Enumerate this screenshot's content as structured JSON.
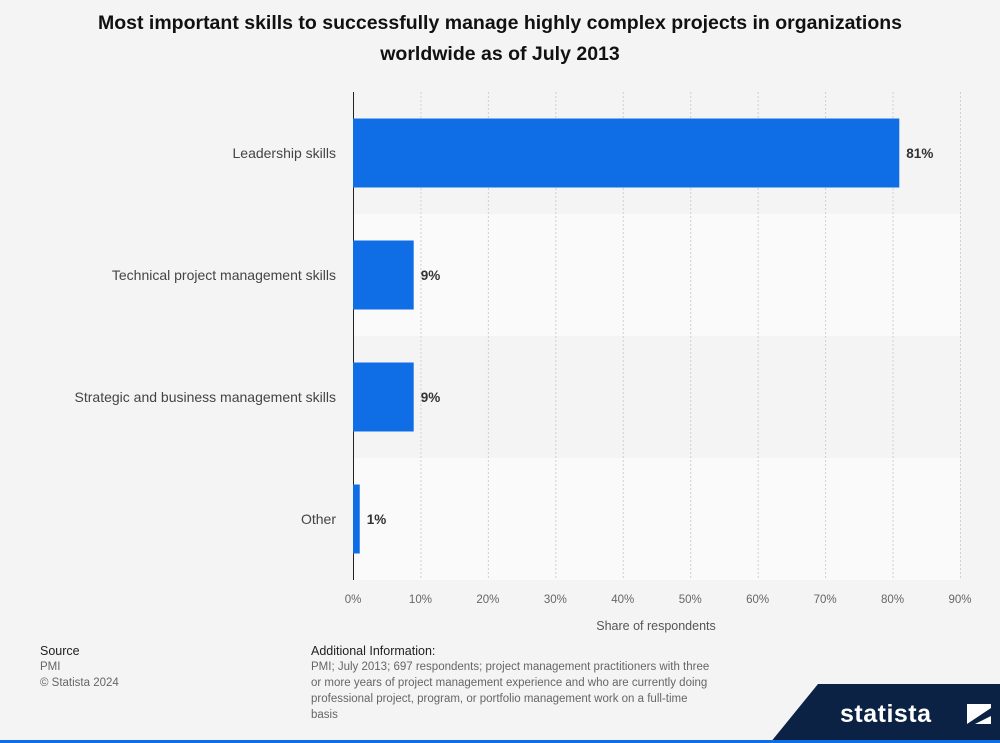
{
  "chart_data": {
    "type": "bar",
    "orientation": "horizontal",
    "title": "Most important skills to successfully manage highly complex projects in organizations worldwide as of July 2013",
    "categories": [
      "Leadership skills",
      "Technical project management skills",
      "Strategic and business management skills",
      "Other"
    ],
    "values": [
      81,
      9,
      9,
      1
    ],
    "value_labels": [
      "81%",
      "9%",
      "9%",
      "1%"
    ],
    "xlabel": "Share of respondents",
    "ylabel": "",
    "xlim": [
      0,
      90
    ],
    "ticks": [
      0,
      10,
      20,
      30,
      40,
      50,
      60,
      70,
      80,
      90
    ],
    "tick_labels": [
      "0%",
      "10%",
      "20%",
      "30%",
      "40%",
      "50%",
      "60%",
      "70%",
      "80%",
      "90%"
    ],
    "grid": true,
    "bar_color": "#0f6ee6"
  },
  "footer": {
    "source_heading": "Source",
    "source_name": "PMI",
    "copyright": "© Statista 2024",
    "additional_heading": "Additional Information:",
    "additional_text": "PMI; July 2013; 697 respondents; project management practitioners with three or more years of project management experience and who are currently doing professional project, program, or portfolio management work on a full-time basis"
  },
  "brand": {
    "name": "statista",
    "icon": "statista-logo-icon",
    "color": "#0b2244"
  }
}
